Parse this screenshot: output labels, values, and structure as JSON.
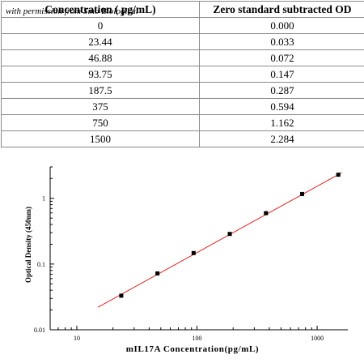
{
  "table": {
    "headers": [
      "Concentration ( pg/mL)",
      "Zero standard subtracted OD"
    ],
    "rows": [
      [
        "0",
        "0.000"
      ],
      [
        "23.44",
        "0.033"
      ],
      [
        "46.88",
        "0.072"
      ],
      [
        "93.75",
        "0.147"
      ],
      [
        "187.5",
        "0.287"
      ],
      [
        "375",
        "0.594"
      ],
      [
        "750",
        "1.162"
      ],
      [
        "1500",
        "2.284"
      ]
    ]
  },
  "watermark": "with permission from Sino Biological",
  "chart_data": {
    "type": "scatter",
    "xscale": "log",
    "yscale": "log",
    "xlim": [
      6,
      1800
    ],
    "ylim": [
      0.01,
      3
    ],
    "xticks": [
      10,
      100,
      1000
    ],
    "xtick_labels": [
      "10",
      "100",
      "1000"
    ],
    "yticks": [
      0.01,
      0.1,
      1
    ],
    "ytick_labels": [
      "0.01",
      "0.1",
      "1"
    ],
    "xlabel": "mIL17A  Concentration(pg/mL)",
    "ylabel": "Optical Density (450nm)",
    "grid": false,
    "x": [
      23.44,
      46.88,
      93.75,
      187.5,
      375,
      750,
      1500
    ],
    "y": [
      0.033,
      0.072,
      0.147,
      0.287,
      0.594,
      1.162,
      2.284
    ],
    "fit_line": {
      "x": [
        15,
        1600
      ],
      "y": [
        0.022,
        2.45
      ]
    },
    "colors": {
      "points": "#000000",
      "fit_line": "#e02020",
      "axes": "#000000"
    }
  }
}
